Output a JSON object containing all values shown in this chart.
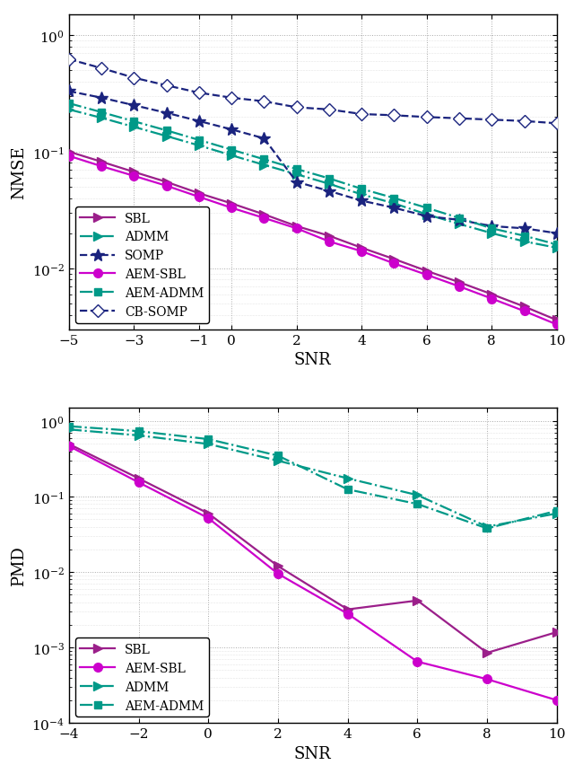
{
  "top_snr": [
    -5,
    -4,
    -3,
    -2,
    -1,
    0,
    1,
    2,
    3,
    4,
    5,
    6,
    7,
    8,
    9,
    10
  ],
  "SBL_nmse": [
    0.1,
    0.082,
    0.067,
    0.055,
    0.044,
    0.036,
    0.029,
    0.023,
    0.019,
    0.015,
    0.012,
    0.0095,
    0.0076,
    0.006,
    0.0047,
    0.0036
  ],
  "AEM_SBL_nmse": [
    0.092,
    0.075,
    0.062,
    0.051,
    0.041,
    0.033,
    0.027,
    0.022,
    0.017,
    0.014,
    0.011,
    0.0088,
    0.007,
    0.0055,
    0.0043,
    0.0033
  ],
  "ADMM_nmse": [
    0.23,
    0.195,
    0.163,
    0.136,
    0.113,
    0.093,
    0.077,
    0.064,
    0.053,
    0.043,
    0.036,
    0.029,
    0.024,
    0.02,
    0.017,
    0.015
  ],
  "AEM_ADMM_nmse": [
    0.26,
    0.218,
    0.182,
    0.152,
    0.126,
    0.104,
    0.086,
    0.071,
    0.059,
    0.048,
    0.04,
    0.033,
    0.027,
    0.022,
    0.019,
    0.016
  ],
  "SOMP_nmse": [
    0.33,
    0.29,
    0.25,
    0.215,
    0.183,
    0.155,
    0.13,
    0.055,
    0.046,
    0.038,
    0.033,
    0.028,
    0.026,
    0.023,
    0.022,
    0.02
  ],
  "CB_SOMP_nmse": [
    0.62,
    0.52,
    0.43,
    0.37,
    0.32,
    0.29,
    0.27,
    0.24,
    0.23,
    0.21,
    0.205,
    0.198,
    0.193,
    0.188,
    0.183,
    0.175
  ],
  "bot_snr_sbl": [
    -4,
    -2,
    0,
    2,
    4,
    6,
    8,
    10
  ],
  "SBL_pmd": [
    0.5,
    0.175,
    0.06,
    0.012,
    0.0032,
    0.0042,
    0.00085,
    0.0016
  ],
  "AEM_SBL_pmd": [
    0.47,
    0.155,
    0.052,
    0.0095,
    0.0028,
    0.00065,
    0.00038,
    0.0002
  ],
  "bot_snr_admm": [
    -4,
    -2,
    0,
    2,
    4,
    6,
    8,
    10
  ],
  "ADMM_pmd": [
    0.78,
    0.65,
    0.5,
    0.3,
    0.175,
    0.105,
    0.04,
    0.06
  ],
  "AEM_ADMM_pmd": [
    0.86,
    0.74,
    0.58,
    0.35,
    0.125,
    0.08,
    0.038,
    0.065
  ],
  "color_purple": "#9B1F8A",
  "color_teal": "#009988",
  "color_navy": "#1A237E",
  "color_magenta": "#CC00CC",
  "top_ylabel": "NMSE",
  "top_xlabel": "SNR",
  "bot_ylabel": "PMD",
  "bot_xlabel": "SNR"
}
